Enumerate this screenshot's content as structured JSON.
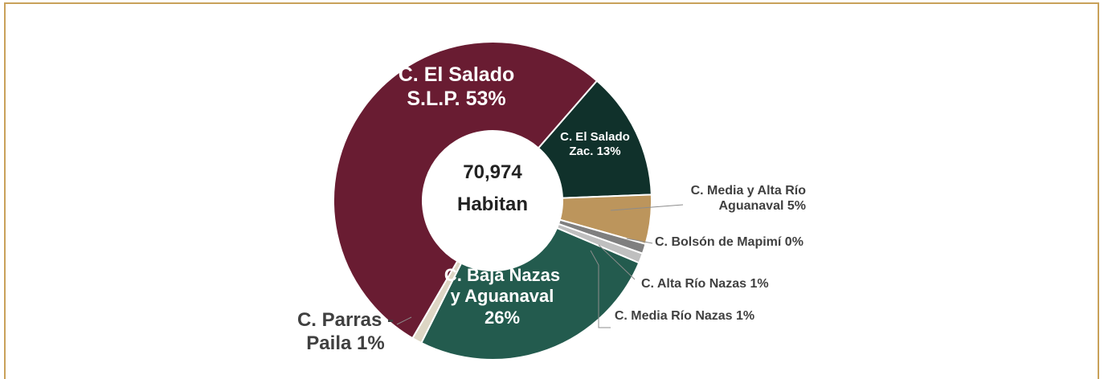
{
  "chart_data": {
    "type": "donut",
    "categories": [
      "C. El Salado Zac.",
      "C. Media y Alta Río Aguanaval",
      "C. Bolsón de Mapimí",
      "C. Alta Río Nazas",
      "C. Media Río Nazas",
      "C. Baja Nazas y Aguanaval",
      "C. Parras - Paila",
      "C. El Salado S.L.P."
    ],
    "values": [
      13,
      5,
      0,
      1,
      1,
      26,
      1,
      53
    ],
    "value_labels": [
      "13%",
      "5%",
      "0%",
      "1%",
      "1%",
      "26%",
      "1%",
      "53%"
    ],
    "colors": [
      "#10312b",
      "#bc955c",
      "#a0522d",
      "#7f7f7f",
      "#bfbfbf",
      "#235b4e",
      "#ddd6c4",
      "#691c32"
    ],
    "center_text": [
      "70,974",
      "Habitan"
    ]
  }
}
